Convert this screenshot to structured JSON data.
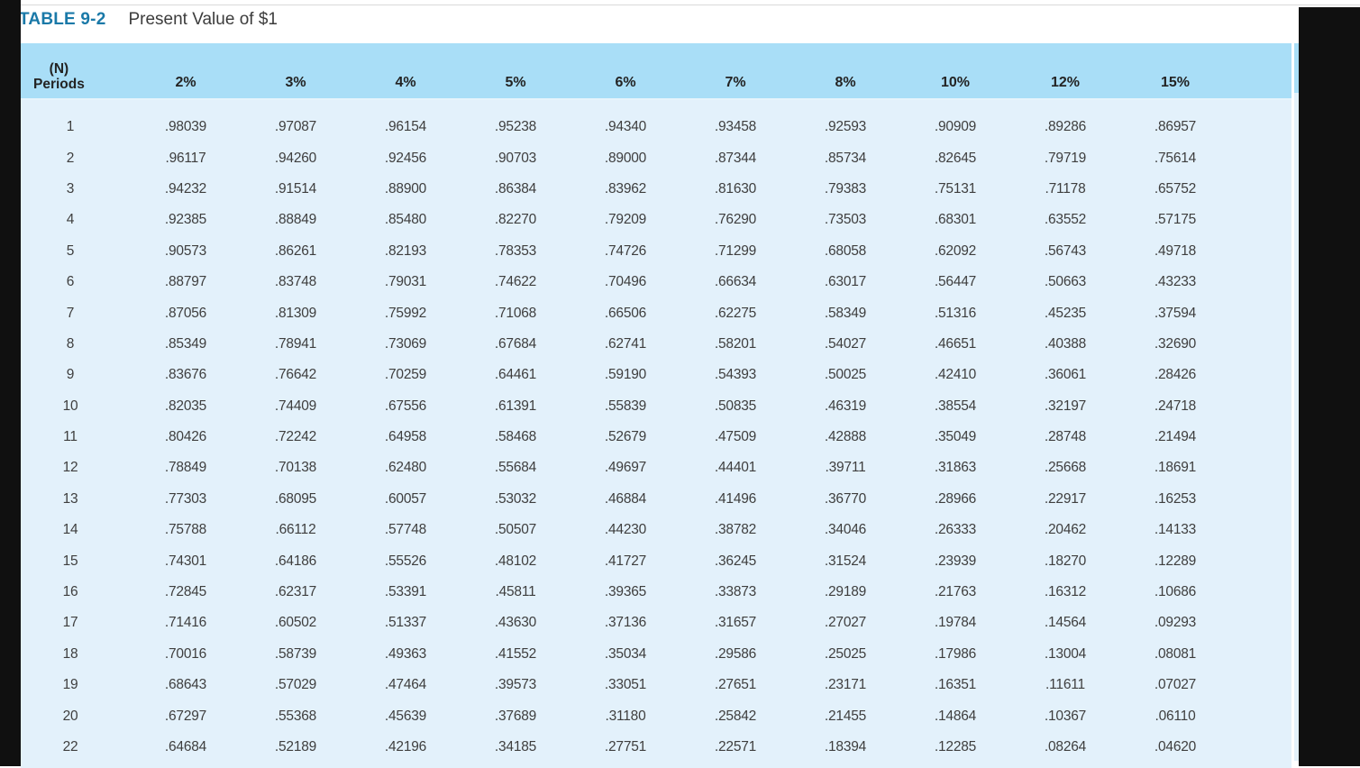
{
  "title": {
    "label": "TABLE 9-2",
    "text": "Present Value of $1"
  },
  "table": {
    "period_header": {
      "line1": "(N)",
      "line2": "Periods"
    },
    "rate_headers": [
      "2%",
      "3%",
      "4%",
      "5%",
      "6%",
      "7%",
      "8%",
      "10%",
      "12%",
      "15%"
    ],
    "rows": [
      {
        "period": "1",
        "values": [
          ".98039",
          ".97087",
          ".96154",
          ".95238",
          ".94340",
          ".93458",
          ".92593",
          ".90909",
          ".89286",
          ".86957"
        ]
      },
      {
        "period": "2",
        "values": [
          ".96117",
          ".94260",
          ".92456",
          ".90703",
          ".89000",
          ".87344",
          ".85734",
          ".82645",
          ".79719",
          ".75614"
        ]
      },
      {
        "period": "3",
        "values": [
          ".94232",
          ".91514",
          ".88900",
          ".86384",
          ".83962",
          ".81630",
          ".79383",
          ".75131",
          ".71178",
          ".65752"
        ]
      },
      {
        "period": "4",
        "values": [
          ".92385",
          ".88849",
          ".85480",
          ".82270",
          ".79209",
          ".76290",
          ".73503",
          ".68301",
          ".63552",
          ".57175"
        ]
      },
      {
        "period": "5",
        "values": [
          ".90573",
          ".86261",
          ".82193",
          ".78353",
          ".74726",
          ".71299",
          ".68058",
          ".62092",
          ".56743",
          ".49718"
        ]
      },
      {
        "period": "6",
        "values": [
          ".88797",
          ".83748",
          ".79031",
          ".74622",
          ".70496",
          ".66634",
          ".63017",
          ".56447",
          ".50663",
          ".43233"
        ]
      },
      {
        "period": "7",
        "values": [
          ".87056",
          ".81309",
          ".75992",
          ".71068",
          ".66506",
          ".62275",
          ".58349",
          ".51316",
          ".45235",
          ".37594"
        ]
      },
      {
        "period": "8",
        "values": [
          ".85349",
          ".78941",
          ".73069",
          ".67684",
          ".62741",
          ".58201",
          ".54027",
          ".46651",
          ".40388",
          ".32690"
        ]
      },
      {
        "period": "9",
        "values": [
          ".83676",
          ".76642",
          ".70259",
          ".64461",
          ".59190",
          ".54393",
          ".50025",
          ".42410",
          ".36061",
          ".28426"
        ]
      },
      {
        "period": "10",
        "values": [
          ".82035",
          ".74409",
          ".67556",
          ".61391",
          ".55839",
          ".50835",
          ".46319",
          ".38554",
          ".32197",
          ".24718"
        ]
      },
      {
        "period": "11",
        "values": [
          ".80426",
          ".72242",
          ".64958",
          ".58468",
          ".52679",
          ".47509",
          ".42888",
          ".35049",
          ".28748",
          ".21494"
        ]
      },
      {
        "period": "12",
        "values": [
          ".78849",
          ".70138",
          ".62480",
          ".55684",
          ".49697",
          ".44401",
          ".39711",
          ".31863",
          ".25668",
          ".18691"
        ]
      },
      {
        "period": "13",
        "values": [
          ".77303",
          ".68095",
          ".60057",
          ".53032",
          ".46884",
          ".41496",
          ".36770",
          ".28966",
          ".22917",
          ".16253"
        ]
      },
      {
        "period": "14",
        "values": [
          ".75788",
          ".66112",
          ".57748",
          ".50507",
          ".44230",
          ".38782",
          ".34046",
          ".26333",
          ".20462",
          ".14133"
        ]
      },
      {
        "period": "15",
        "values": [
          ".74301",
          ".64186",
          ".55526",
          ".48102",
          ".41727",
          ".36245",
          ".31524",
          ".23939",
          ".18270",
          ".12289"
        ]
      },
      {
        "period": "16",
        "values": [
          ".72845",
          ".62317",
          ".53391",
          ".45811",
          ".39365",
          ".33873",
          ".29189",
          ".21763",
          ".16312",
          ".10686"
        ]
      },
      {
        "period": "17",
        "values": [
          ".71416",
          ".60502",
          ".51337",
          ".43630",
          ".37136",
          ".31657",
          ".27027",
          ".19784",
          ".14564",
          ".09293"
        ]
      },
      {
        "period": "18",
        "values": [
          ".70016",
          ".58739",
          ".49363",
          ".41552",
          ".35034",
          ".29586",
          ".25025",
          ".17986",
          ".13004",
          ".08081"
        ]
      },
      {
        "period": "19",
        "values": [
          ".68643",
          ".57029",
          ".47464",
          ".39573",
          ".33051",
          ".27651",
          ".23171",
          ".16351",
          ".11611",
          ".07027"
        ]
      },
      {
        "period": "20",
        "values": [
          ".67297",
          ".55368",
          ".45639",
          ".37689",
          ".31180",
          ".25842",
          ".21455",
          ".14864",
          ".10367",
          ".06110"
        ]
      },
      {
        "period": "22",
        "values": [
          ".64684",
          ".52189",
          ".42196",
          ".34185",
          ".27751",
          ".22571",
          ".18394",
          ".12285",
          ".08264",
          ".04620"
        ]
      }
    ]
  },
  "colors": {
    "accent_blue": "#1a79a8",
    "header_bg": "#a9def7",
    "body_bg": "#e3f1fb",
    "frame_black": "#101010"
  }
}
